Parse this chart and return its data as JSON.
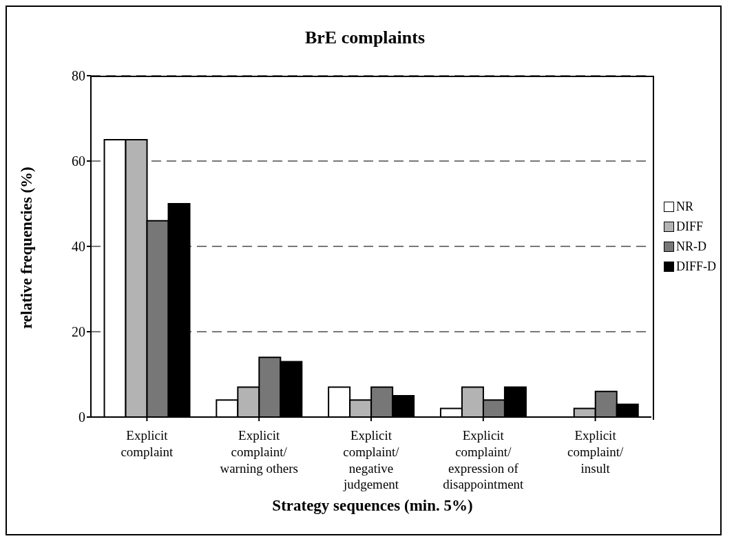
{
  "chart_data": {
    "type": "bar",
    "title": "BrE complaints",
    "xlabel": "Strategy sequences (min. 5%)",
    "ylabel": "relative frequencies (%)",
    "categories": [
      "Explicit complaint",
      "Explicit complaint/ warning others",
      "Explicit complaint/ negative judgement",
      "Explicit complaint/ expression of disappointment",
      "Explicit complaint/ insult"
    ],
    "series": [
      {
        "name": "NR",
        "color": "#ffffff",
        "values": [
          65,
          4,
          7,
          2,
          0
        ]
      },
      {
        "name": "DIFF",
        "color": "#b3b3b3",
        "values": [
          65,
          7,
          4,
          7,
          2
        ]
      },
      {
        "name": "NR-D",
        "color": "#777777",
        "values": [
          46,
          14,
          7,
          4,
          6
        ]
      },
      {
        "name": "DIFF-D",
        "color": "#000000",
        "values": [
          50,
          13,
          5,
          7,
          3
        ]
      }
    ],
    "ylim": [
      0,
      80
    ],
    "yticks": [
      0,
      20,
      40,
      60,
      80
    ],
    "grid": "y",
    "legend": "right"
  }
}
